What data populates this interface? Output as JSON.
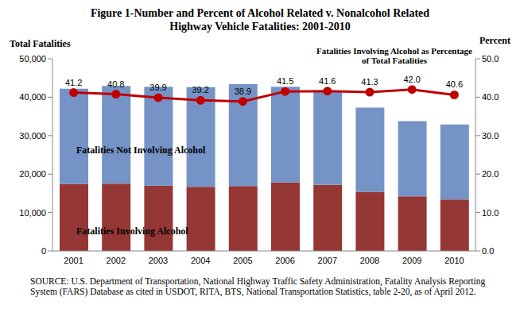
{
  "chart_data": {
    "type": "bar",
    "title": "Figure 1-Number and Percent of Alcohol Related v. Nonalcohol Related Highway Vehicle Fatalities: 2001-2010",
    "y_label": "Total Fatalities",
    "y2_label": "Percent",
    "annotation": "Fatalities Involving Alcohol as Percentage of Total Fatalities",
    "source": "SOURCE: U.S. Department of Transportation, National Highway Traffic Safety Administration, Fatality Analysis Reporting System (FARS) Database as cited in USDOT, RITA, BTS, National Transportation Statistics, table 2-20, as of April 2012.",
    "categories": [
      "2001",
      "2002",
      "2003",
      "2004",
      "2005",
      "2006",
      "2007",
      "2008",
      "2009",
      "2010"
    ],
    "stacked": true,
    "grid": false,
    "series": [
      {
        "name": "Fatalities Involving Alcohol",
        "type": "bar",
        "color": "#953735",
        "values": [
          17400,
          17500,
          17000,
          16700,
          16900,
          17800,
          17200,
          15400,
          14200,
          13400
        ]
      },
      {
        "name": "Fatalities Not Involving Alcohol",
        "type": "bar",
        "color": "#7593c6",
        "values": [
          24800,
          25400,
          25700,
          25900,
          26500,
          24900,
          24100,
          21900,
          19600,
          19500
        ]
      },
      {
        "name": "Fatalities Involving Alcohol as Percentage of Total Fatalities",
        "type": "line",
        "axis": "y2",
        "color": "#c00000",
        "marker": "circle",
        "data_labels": true,
        "values": [
          41.2,
          40.8,
          39.9,
          39.2,
          38.9,
          41.5,
          41.6,
          41.3,
          42.0,
          40.6
        ],
        "value_labels": [
          "41.2",
          "40.8",
          "39.9",
          "39.2",
          "38.9",
          "41.5",
          "41.6",
          "41.3",
          "42.0",
          "40.6"
        ]
      }
    ],
    "ylim": [
      0,
      50000
    ],
    "yticks": [
      0,
      {
        "value": 10000,
        "label": "10,000"
      },
      {
        "value": 20000,
        "label": "20,000"
      },
      {
        "value": 30000,
        "label": "30,000"
      },
      {
        "value": 40000,
        "label": "40,000"
      },
      {
        "value": 50000,
        "label": "50,000"
      }
    ],
    "y2lim": [
      0,
      50
    ],
    "y2ticks": [
      {
        "value": 0,
        "label": "0.0"
      },
      {
        "value": 10,
        "label": "10.0"
      },
      {
        "value": 20,
        "label": "20.0"
      },
      {
        "value": 30,
        "label": "30.0"
      },
      {
        "value": 40,
        "label": "40.0"
      },
      {
        "value": 50,
        "label": "50.0"
      }
    ]
  }
}
